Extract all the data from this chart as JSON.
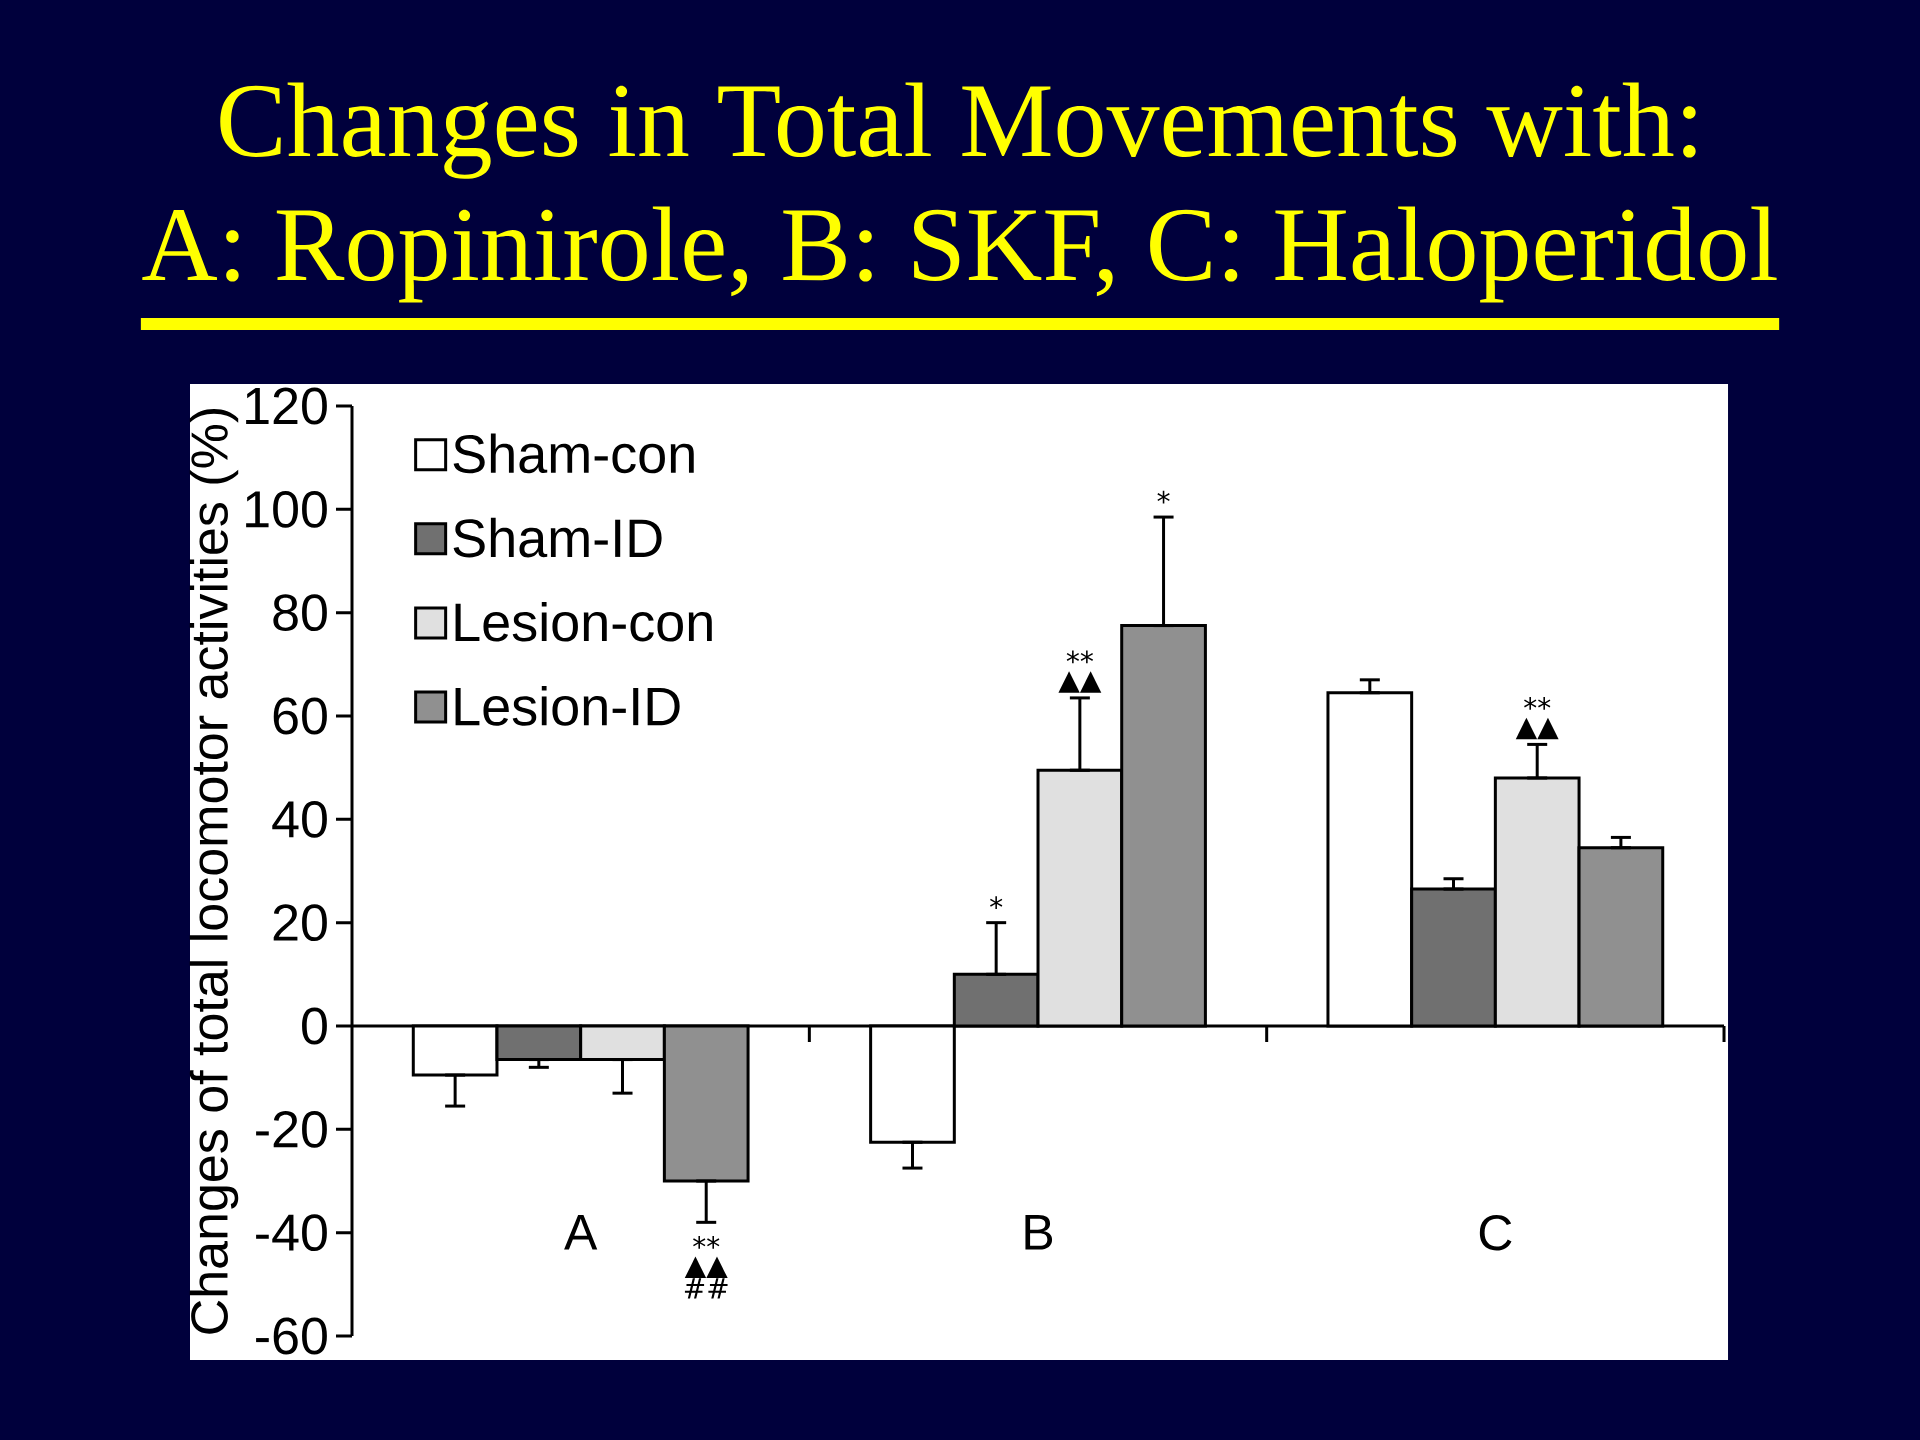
{
  "chart_data": {
    "type": "bar",
    "title": "Changes in Total Movements with:",
    "subtitle": "A: Ropinirole, B: SKF, C: Haloperidol",
    "ylabel": "Changes of total locomotor activities (%)",
    "categories": [
      "A",
      "B",
      "C"
    ],
    "series": [
      {
        "name": "Sham-con",
        "color": "#ffffff",
        "values": [
          -9.5,
          -22.5,
          64.5
        ],
        "errors": [
          [
            -15.5,
            -9.5
          ],
          [
            -27.5,
            -22.5
          ],
          [
            64.5,
            67
          ]
        ]
      },
      {
        "name": "Sham-ID",
        "color": "#707070",
        "values": [
          -6.5,
          10,
          26.5
        ],
        "errors": [
          [
            -8,
            -6.5
          ],
          [
            10,
            20
          ],
          [
            26.5,
            28.5
          ]
        ]
      },
      {
        "name": "Lesion-con",
        "color": "#e0e0e0",
        "values": [
          -6.5,
          49.5,
          48
        ],
        "errors": [
          [
            -13,
            -6.5
          ],
          [
            49.5,
            63.5
          ],
          [
            48,
            54.5
          ]
        ]
      },
      {
        "name": "Lesion-ID",
        "color": "#909090",
        "values": [
          -30,
          77.5,
          34.5
        ],
        "errors": [
          [
            -38,
            -30
          ],
          [
            77.5,
            98.5
          ],
          [
            34.5,
            36.5
          ]
        ]
      }
    ],
    "ylim": [
      -60,
      120
    ],
    "yticks": [
      -60,
      -40,
      -20,
      0,
      20,
      40,
      60,
      80,
      100,
      120
    ],
    "legend": "top left",
    "annotations": [
      {
        "text": "**",
        "y": -38
      },
      {
        "text": "▲▲",
        "y": -38
      },
      {
        "text": "##",
        "y": -38
      },
      {
        "text": "*",
        "y": 20
      },
      {
        "text": "▲▲",
        "y": 63.5
      },
      {
        "text": "**",
        "y": 63.5
      },
      {
        "text": "*",
        "y": 98.5
      },
      {
        "text": "▲▲",
        "y": 54.5
      },
      {
        "text": "**",
        "y": 54.5
      }
    ]
  }
}
